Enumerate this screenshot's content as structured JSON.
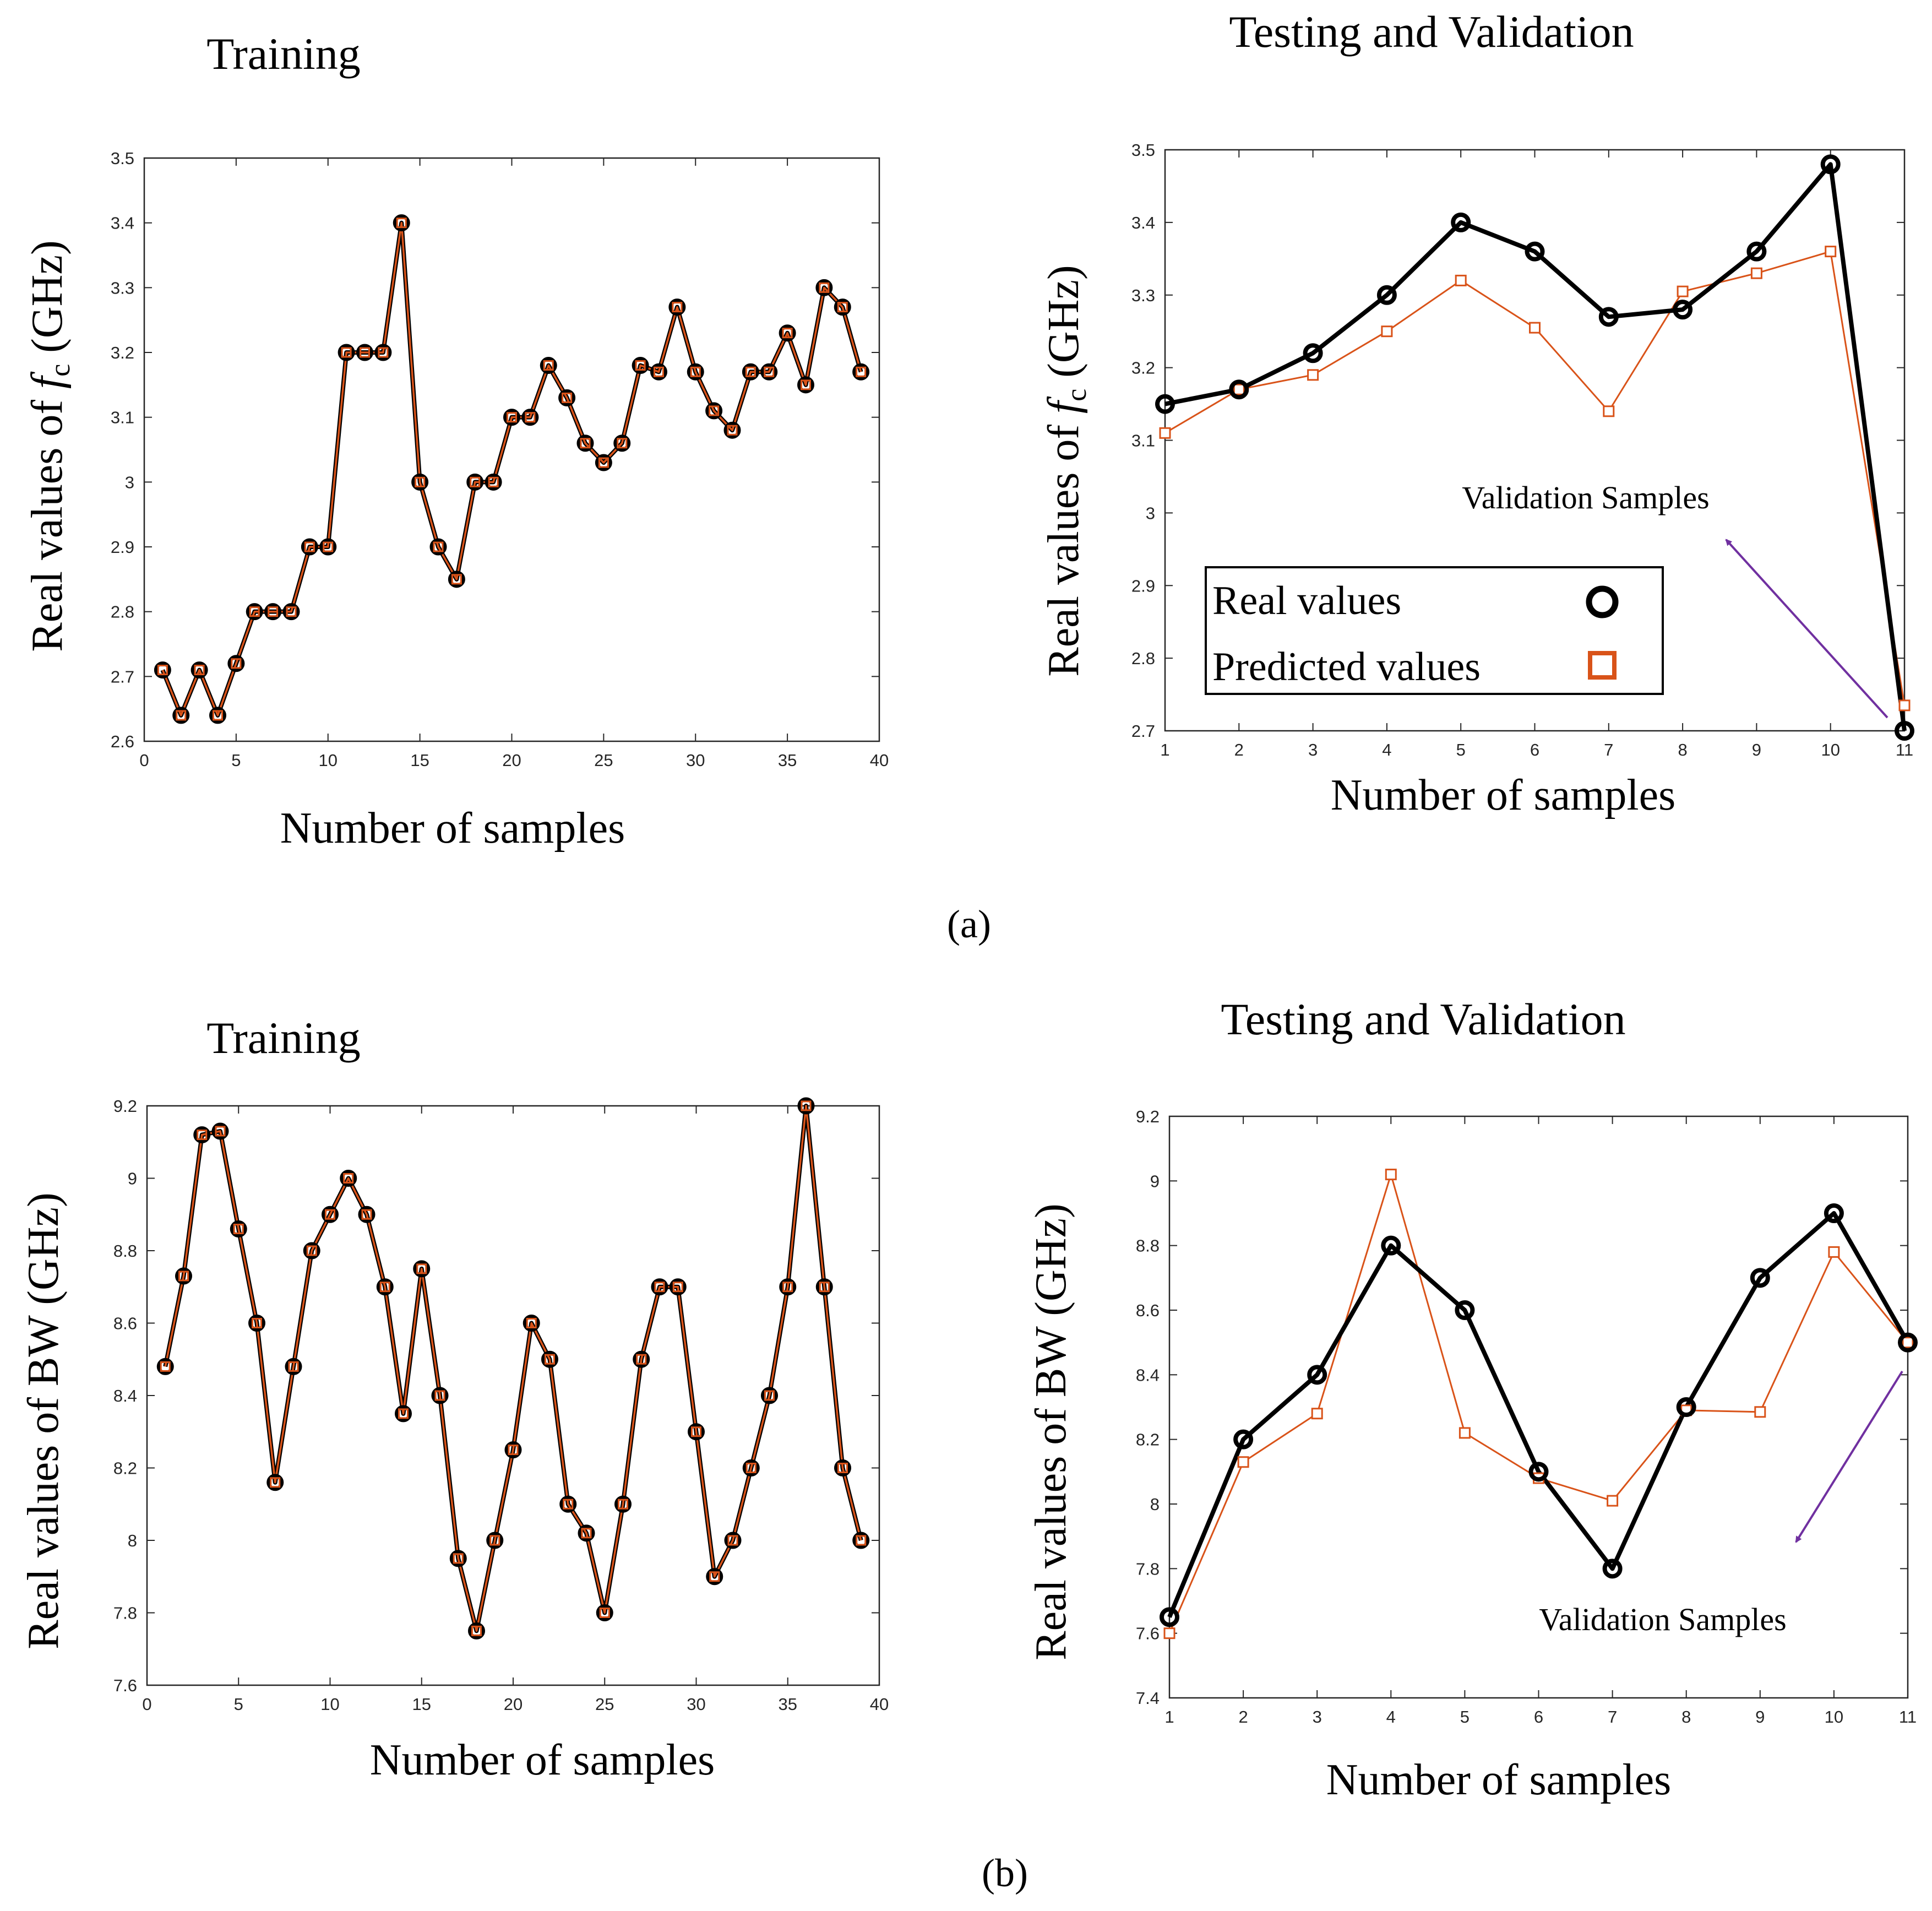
{
  "colors": {
    "real": "#000000",
    "predicted": "#d95319",
    "training_line": "#d95319",
    "arrow": "#7030a0"
  },
  "panel_labels": {
    "a": "(a)",
    "b": "(b)"
  },
  "chart_data": [
    {
      "id": "a_training",
      "type": "line",
      "title": "Training",
      "xlabel": "Number of samples",
      "ylabel_pre": "Real values of ",
      "ylabel_sym": "f",
      "ylabel_sub": "c",
      "ylabel_post": " (GHz)",
      "xlim": [
        0,
        40
      ],
      "ylim": [
        2.6,
        3.5
      ],
      "xticks": [
        0,
        5,
        10,
        15,
        20,
        25,
        30,
        35,
        40
      ],
      "xtick_labels": [
        "0",
        "5",
        "10",
        "15",
        "20",
        "25",
        "30",
        "35",
        "40"
      ],
      "yticks": [
        2.6,
        2.7,
        2.8,
        2.9,
        3.0,
        3.1,
        3.2,
        3.3,
        3.4,
        3.5
      ],
      "ytick_labels": [
        "2.6",
        "2.7",
        "2.8",
        "2.9",
        "3",
        "3.1",
        "3.2",
        "3.3",
        "3.4",
        "3.5"
      ],
      "x": [
        1,
        2,
        3,
        4,
        5,
        6,
        7,
        8,
        9,
        10,
        11,
        12,
        13,
        14,
        15,
        16,
        17,
        18,
        19,
        20,
        21,
        22,
        23,
        24,
        25,
        26,
        27,
        28,
        29,
        30,
        31,
        32,
        33,
        34,
        35,
        36,
        37,
        38,
        39
      ],
      "series": [
        {
          "name": "Real values",
          "values": [
            2.71,
            2.64,
            2.71,
            2.64,
            2.72,
            2.8,
            2.8,
            2.8,
            2.9,
            2.9,
            3.2,
            3.2,
            3.2,
            3.4,
            3.0,
            2.9,
            2.85,
            3.0,
            3.0,
            3.1,
            3.1,
            3.18,
            3.13,
            3.06,
            3.03,
            3.06,
            3.18,
            3.17,
            3.27,
            3.17,
            3.11,
            3.08,
            3.17,
            3.17,
            3.23,
            3.15,
            3.3,
            3.27,
            3.17
          ]
        },
        {
          "name": "Predicted values",
          "values": [
            2.71,
            2.64,
            2.71,
            2.64,
            2.72,
            2.8,
            2.8,
            2.8,
            2.9,
            2.9,
            3.2,
            3.2,
            3.2,
            3.4,
            3.0,
            2.9,
            2.85,
            3.0,
            3.0,
            3.1,
            3.1,
            3.18,
            3.13,
            3.06,
            3.03,
            3.06,
            3.18,
            3.17,
            3.27,
            3.17,
            3.11,
            3.08,
            3.17,
            3.17,
            3.23,
            3.15,
            3.3,
            3.27,
            3.17
          ]
        }
      ]
    },
    {
      "id": "a_testing",
      "type": "line",
      "title": "Testing and Validation",
      "xlabel": "Number of samples",
      "ylabel_pre": "Real values of ",
      "ylabel_sym": "f",
      "ylabel_sub": "c",
      "ylabel_post": " (GHz)",
      "xlim": [
        1,
        11
      ],
      "ylim": [
        2.7,
        3.5
      ],
      "xticks": [
        1,
        2,
        3,
        4,
        5,
        6,
        7,
        8,
        9,
        10,
        11
      ],
      "xtick_labels": [
        "1",
        "2",
        "3",
        "4",
        "5",
        "6",
        "7",
        "8",
        "9",
        "10",
        "11"
      ],
      "yticks": [
        2.7,
        2.8,
        2.9,
        3.0,
        3.1,
        3.2,
        3.3,
        3.4,
        3.5
      ],
      "ytick_labels": [
        "2.7",
        "2.8",
        "2.9",
        "3",
        "3.1",
        "3.2",
        "3.3",
        "3.4",
        "3.5"
      ],
      "x": [
        1,
        2,
        3,
        4,
        5,
        6,
        7,
        8,
        9,
        10,
        11
      ],
      "series": [
        {
          "name": "Real values",
          "values": [
            3.15,
            3.17,
            3.22,
            3.3,
            3.4,
            3.36,
            3.27,
            3.28,
            3.36,
            3.48,
            2.7
          ]
        },
        {
          "name": "Predicted values",
          "values": [
            3.11,
            3.17,
            3.19,
            3.25,
            3.32,
            3.255,
            3.14,
            3.305,
            3.33,
            3.36,
            2.735
          ]
        }
      ],
      "legend": [
        "Real values",
        "Predicted values"
      ],
      "annotation": "Validation Samples"
    },
    {
      "id": "b_training",
      "type": "line",
      "title": "Training",
      "xlabel": "Number of samples",
      "ylabel_pre": "Real values of BW (GHz)",
      "xlim": [
        0,
        40
      ],
      "ylim": [
        7.6,
        9.2
      ],
      "xticks": [
        0,
        5,
        10,
        15,
        20,
        25,
        30,
        35,
        40
      ],
      "xtick_labels": [
        "0",
        "5",
        "10",
        "15",
        "20",
        "25",
        "30",
        "35",
        "40"
      ],
      "yticks": [
        7.6,
        7.8,
        8.0,
        8.2,
        8.4,
        8.6,
        8.8,
        9.0,
        9.2
      ],
      "ytick_labels": [
        "7.6",
        "7.8",
        "8",
        "8.2",
        "8.4",
        "8.6",
        "8.8",
        "9",
        "9.2"
      ],
      "x": [
        1,
        2,
        3,
        4,
        5,
        6,
        7,
        8,
        9,
        10,
        11,
        12,
        13,
        14,
        15,
        16,
        17,
        18,
        19,
        20,
        21,
        22,
        23,
        24,
        25,
        26,
        27,
        28,
        29,
        30,
        31,
        32,
        33,
        34,
        35,
        36,
        37,
        38,
        39
      ],
      "series": [
        {
          "name": "Real values",
          "values": [
            8.48,
            8.73,
            9.12,
            9.13,
            8.86,
            8.6,
            8.16,
            8.48,
            8.8,
            8.9,
            9.0,
            8.9,
            8.7,
            8.35,
            8.75,
            8.4,
            7.95,
            7.75,
            8.0,
            8.25,
            8.6,
            8.5,
            8.1,
            8.02,
            7.8,
            8.1,
            8.5,
            8.7,
            8.7,
            8.3,
            7.9,
            8.0,
            8.2,
            8.4,
            8.7,
            9.2,
            8.7,
            8.2,
            8.0
          ]
        },
        {
          "name": "Predicted values",
          "values": [
            8.48,
            8.73,
            9.12,
            9.13,
            8.86,
            8.6,
            8.16,
            8.48,
            8.8,
            8.9,
            9.0,
            8.9,
            8.7,
            8.35,
            8.75,
            8.4,
            7.95,
            7.75,
            8.0,
            8.25,
            8.6,
            8.5,
            8.1,
            8.02,
            7.8,
            8.1,
            8.5,
            8.7,
            8.7,
            8.3,
            7.9,
            8.0,
            8.2,
            8.4,
            8.7,
            9.2,
            8.7,
            8.2,
            8.0
          ]
        }
      ]
    },
    {
      "id": "b_testing",
      "type": "line",
      "title": "Testing and Validation",
      "xlabel": "Number of samples",
      "ylabel_pre": "Real values of BW (GHz)",
      "xlim": [
        1,
        11
      ],
      "ylim": [
        7.4,
        9.2
      ],
      "xticks": [
        1,
        2,
        3,
        4,
        5,
        6,
        7,
        8,
        9,
        10,
        11
      ],
      "xtick_labels": [
        "1",
        "2",
        "3",
        "4",
        "5",
        "6",
        "7",
        "8",
        "9",
        "10",
        "11"
      ],
      "yticks": [
        7.4,
        7.6,
        7.8,
        8.0,
        8.2,
        8.4,
        8.6,
        8.8,
        9.0,
        9.2
      ],
      "ytick_labels": [
        "7.4",
        "7.6",
        "7.8",
        "8",
        "8.2",
        "8.4",
        "8.6",
        "8.8",
        "9",
        "9.2"
      ],
      "x": [
        1,
        2,
        3,
        4,
        5,
        6,
        7,
        8,
        9,
        10,
        11
      ],
      "series": [
        {
          "name": "Real values",
          "values": [
            7.65,
            8.2,
            8.4,
            8.8,
            8.6,
            8.1,
            7.8,
            8.3,
            8.7,
            8.9,
            8.5
          ]
        },
        {
          "name": "Predicted values",
          "values": [
            7.6,
            8.13,
            8.28,
            9.02,
            8.22,
            8.08,
            8.01,
            8.29,
            8.285,
            8.78,
            8.5
          ]
        }
      ],
      "annotation": "Validation Samples"
    }
  ]
}
